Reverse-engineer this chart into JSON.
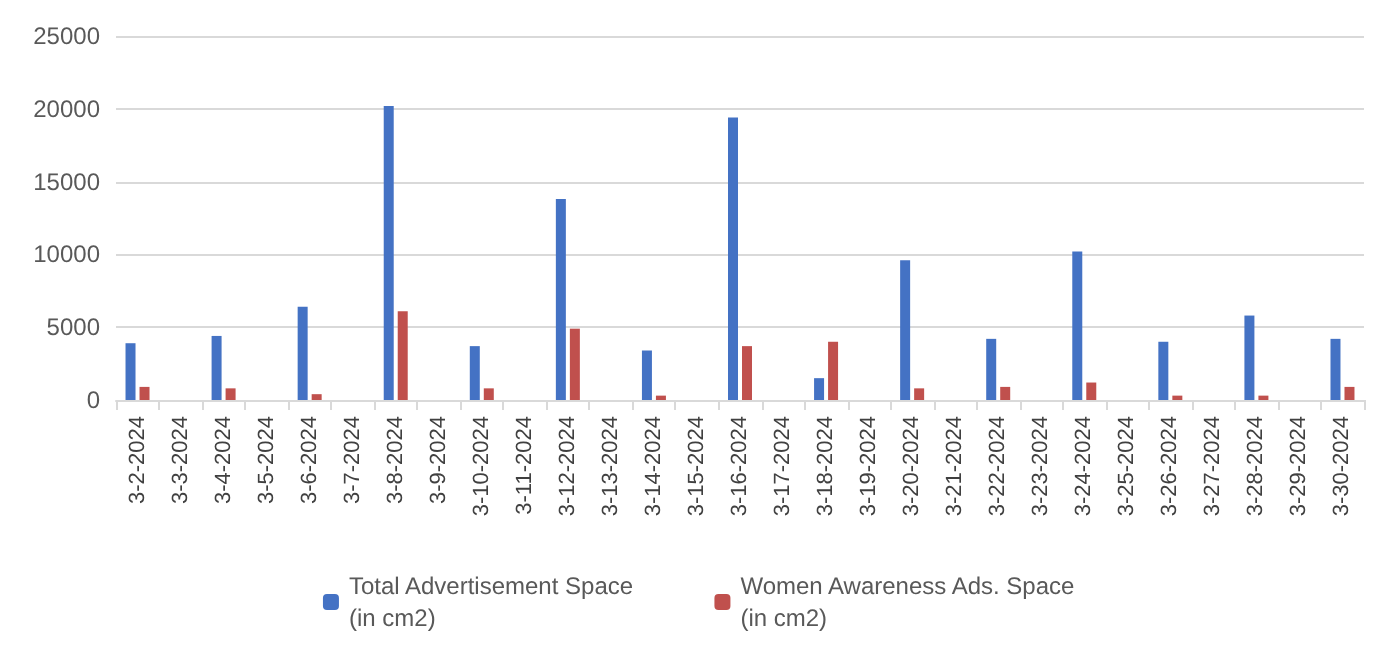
{
  "chart_data": {
    "type": "bar",
    "categories": [
      "3-2-2024",
      "3-3-2024",
      "3-4-2024",
      "3-5-2024",
      "3-6-2024",
      "3-7-2024",
      "3-8-2024",
      "3-9-2024",
      "3-10-2024",
      "3-11-2024",
      "3-12-2024",
      "3-13-2024",
      "3-14-2024",
      "3-15-2024",
      "3-16-2024",
      "3-17-2024",
      "3-18-2024",
      "3-19-2024",
      "3-20-2024",
      "3-21-2024",
      "3-22-2024",
      "3-23-2024",
      "3-24-2024",
      "3-25-2024",
      "3-26-2024",
      "3-27-2024",
      "3-28-2024",
      "3-29-2024",
      "3-30-2024"
    ],
    "series": [
      {
        "name": "Total Advertisement Space\n(in cm2)",
        "color": "#4472c4",
        "values": [
          3900,
          null,
          4400,
          null,
          6400,
          null,
          20200,
          null,
          3700,
          null,
          13800,
          null,
          3400,
          null,
          19400,
          null,
          1500,
          null,
          9600,
          null,
          4200,
          null,
          10200,
          null,
          4000,
          null,
          5800,
          null,
          4200
        ]
      },
      {
        "name": "Women Awareness Ads. Space\n(in cm2)",
        "color": "#c0504d",
        "values": [
          900,
          null,
          800,
          null,
          400,
          null,
          6100,
          null,
          800,
          null,
          4900,
          null,
          300,
          null,
          3700,
          null,
          4000,
          null,
          800,
          null,
          900,
          null,
          1200,
          null,
          300,
          null,
          300,
          null,
          900
        ]
      }
    ],
    "ylim": [
      0,
      25000
    ],
    "yticks": [
      0,
      5000,
      10000,
      15000,
      20000,
      25000
    ],
    "grid": "y",
    "legend": "bottom"
  }
}
